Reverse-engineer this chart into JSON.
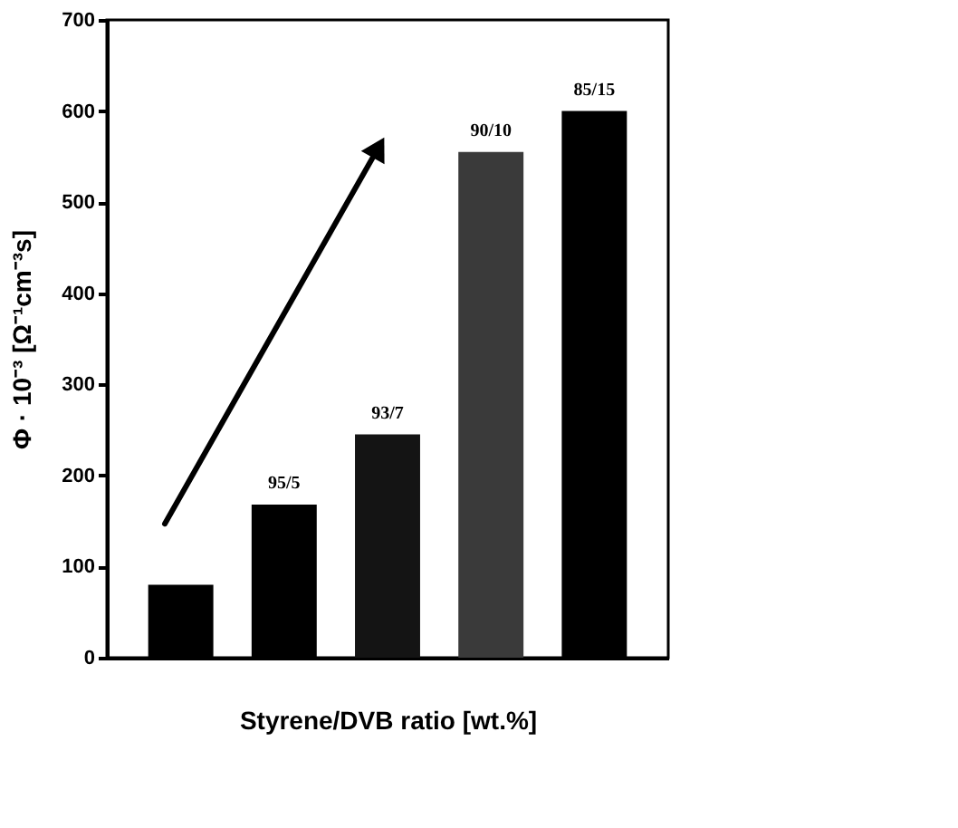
{
  "chart_data": {
    "type": "bar",
    "xlabel": "Styrene/DVB ratio [wt.%]",
    "ylabel": "Φ · 10⁻³ [Ω⁻¹cm⁻³s]",
    "categories": [
      null,
      "95/5",
      "93/7",
      "90/10",
      "85/15"
    ],
    "values": [
      80,
      168,
      245,
      555,
      600
    ],
    "colors": [
      "#000000",
      "#000000",
      "#141414",
      "#3a3a3a",
      "#000000"
    ],
    "ylim": [
      0,
      700
    ],
    "yticks": [
      0,
      100,
      200,
      300,
      400,
      500,
      600,
      700
    ],
    "grid": false
  }
}
